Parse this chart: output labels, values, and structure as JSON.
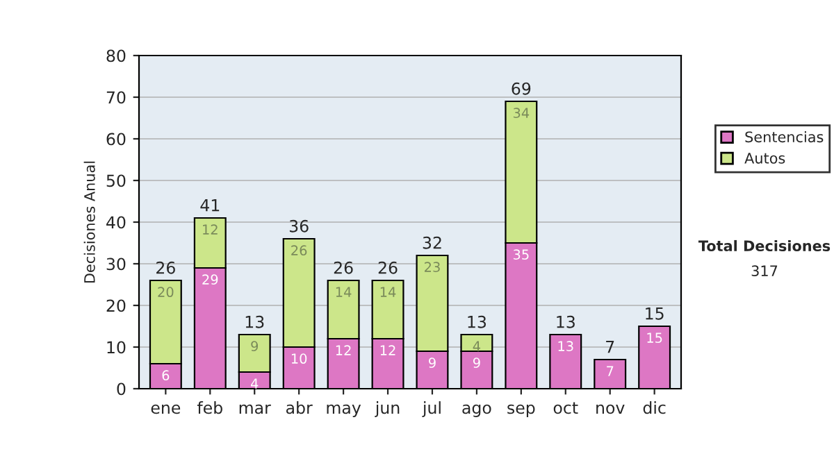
{
  "chart_data": {
    "type": "bar",
    "stacked": true,
    "ylabel": "Decisiones Anual",
    "categories": [
      "ene",
      "feb",
      "mar",
      "abr",
      "may",
      "jun",
      "jul",
      "ago",
      "sep",
      "oct",
      "nov",
      "dic"
    ],
    "series": [
      {
        "name": "Sentencias",
        "color": "#dd77c4",
        "values": [
          6,
          29,
          4,
          10,
          12,
          12,
          9,
          9,
          35,
          13,
          7,
          15
        ],
        "value_labels": [
          "6",
          "29",
          "4",
          "10",
          "12",
          "12",
          "9",
          "9",
          "35",
          "13",
          "7",
          "15"
        ]
      },
      {
        "name": "Autos",
        "color": "#cce68a",
        "values": [
          20,
          12,
          9,
          26,
          14,
          14,
          23,
          4,
          34,
          null,
          null,
          null
        ],
        "value_labels": [
          "20",
          "12",
          "9",
          "26",
          "14",
          "14",
          "23",
          "4",
          "34",
          null,
          null,
          null
        ]
      }
    ],
    "totals": [
      "26",
      "41",
      "13",
      "36",
      "26",
      "26",
      "32",
      "13",
      "69",
      "13",
      "7",
      "15"
    ],
    "ylim": [
      0,
      80
    ],
    "yticks": [
      0,
      10,
      20,
      30,
      40,
      50,
      60,
      70,
      80
    ],
    "grid": "y",
    "legend": "right",
    "annotations": [
      "Total Decisiones",
      "317"
    ]
  }
}
